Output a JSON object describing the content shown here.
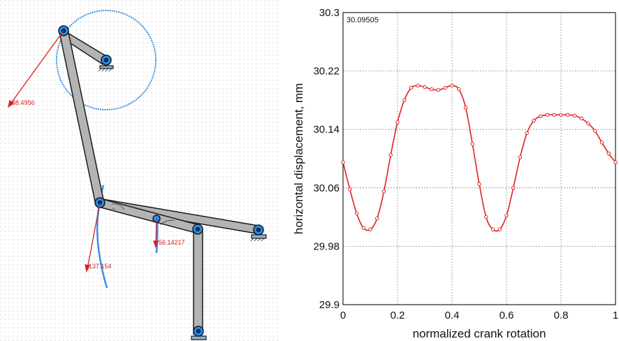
{
  "mechanism": {
    "force_labels": [
      "88.4956",
      "137.154",
      "56.14217"
    ],
    "link_color": "#b4b4b4",
    "joint_color": "#1e90ff",
    "force_color": "#d32020",
    "trace_color": "#3a8fe0"
  },
  "chart_data": {
    "type": "line",
    "title": "",
    "readout": "30.09505",
    "xlabel": "normalized crank rotation",
    "ylabel": "horizontal displacement, mm",
    "xlim": [
      0,
      1
    ],
    "ylim": [
      29.9,
      30.3
    ],
    "xticks": [
      "0",
      "0.2",
      "0.4",
      "0.6",
      "0.8",
      "1"
    ],
    "yticks": [
      "29.9",
      "29.98",
      "30.06",
      "30.14",
      "30.22",
      "30.3"
    ],
    "grid": true,
    "series_color": "#e02020",
    "series": [
      {
        "x": [
          0,
          0.025,
          0.05,
          0.075,
          0.1,
          0.125,
          0.15,
          0.175,
          0.2,
          0.225,
          0.25,
          0.275,
          0.3,
          0.325,
          0.35,
          0.375,
          0.4,
          0.425,
          0.45,
          0.475,
          0.5,
          0.525,
          0.55,
          0.575,
          0.6,
          0.625,
          0.65,
          0.675,
          0.7,
          0.725,
          0.75,
          0.775,
          0.8,
          0.825,
          0.85,
          0.875,
          0.9,
          0.925,
          0.95,
          0.975,
          1.0
        ],
        "values": [
          30.095,
          30.058,
          30.025,
          30.005,
          30.003,
          30.018,
          30.055,
          30.105,
          30.15,
          30.18,
          30.197,
          30.2,
          30.198,
          30.195,
          30.194,
          30.197,
          30.2,
          30.195,
          30.17,
          30.12,
          30.065,
          30.02,
          30.003,
          30.003,
          30.022,
          30.06,
          30.102,
          30.135,
          30.152,
          30.158,
          30.16,
          30.16,
          30.16,
          30.16,
          30.159,
          30.155,
          30.148,
          30.138,
          30.122,
          30.107,
          30.095
        ]
      }
    ]
  }
}
